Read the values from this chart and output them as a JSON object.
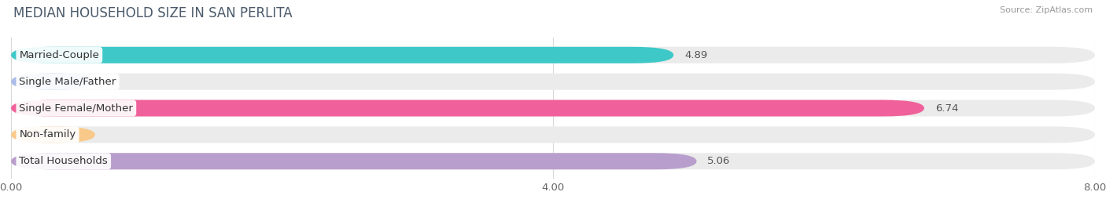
{
  "title": "MEDIAN HOUSEHOLD SIZE IN SAN PERLITA",
  "source": "Source: ZipAtlas.com",
  "categories": [
    "Married-Couple",
    "Single Male/Father",
    "Single Female/Mother",
    "Non-family",
    "Total Households"
  ],
  "values": [
    4.89,
    0.0,
    6.74,
    0.0,
    5.06
  ],
  "bar_colors": [
    "#3ec8c8",
    "#aabde8",
    "#f0609a",
    "#f9c98a",
    "#b89ecc"
  ],
  "bar_bg_color": "#ebebeb",
  "xlim": [
    0,
    8.0
  ],
  "xticks": [
    0.0,
    4.0,
    8.0
  ],
  "xtick_labels": [
    "0.00",
    "4.00",
    "8.00"
  ],
  "label_fontsize": 9.5,
  "title_fontsize": 12,
  "value_fontsize": 9.5,
  "background_color": "#ffffff",
  "bar_height": 0.62,
  "grid_color": "#d8d8d8",
  "label_box_color": "#ffffff",
  "text_color_dark": "#555555",
  "text_color_light": "#ffffff"
}
